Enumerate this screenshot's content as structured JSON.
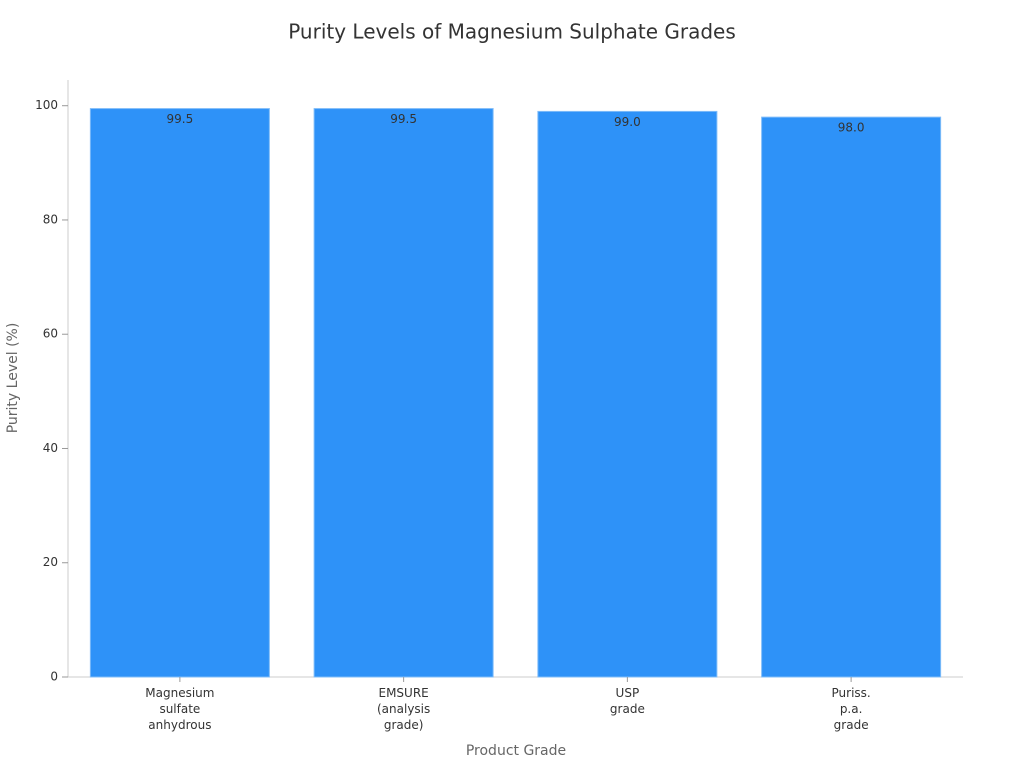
{
  "chart_data": {
    "type": "bar",
    "title": "Purity Levels of Magnesium Sulphate Grades",
    "x_label": "Product Grade",
    "y_label": "Purity Level (%)",
    "categories": [
      [
        "Magnesium",
        "sulfate",
        "anhydrous"
      ],
      [
        "EMSURE",
        "(analysis",
        "grade)"
      ],
      [
        "USP",
        "grade"
      ],
      [
        "Puriss.",
        "p.a.",
        "grade"
      ]
    ],
    "values": [
      99.5,
      99.5,
      99.0,
      98.0
    ],
    "value_labels": [
      "99.5",
      "99.5",
      "99.0",
      "98.0"
    ],
    "color": "#2e92f8",
    "ylim": [
      0,
      104.5
    ],
    "yticks": [
      0,
      20,
      40,
      60,
      80,
      100
    ],
    "grid": false
  }
}
